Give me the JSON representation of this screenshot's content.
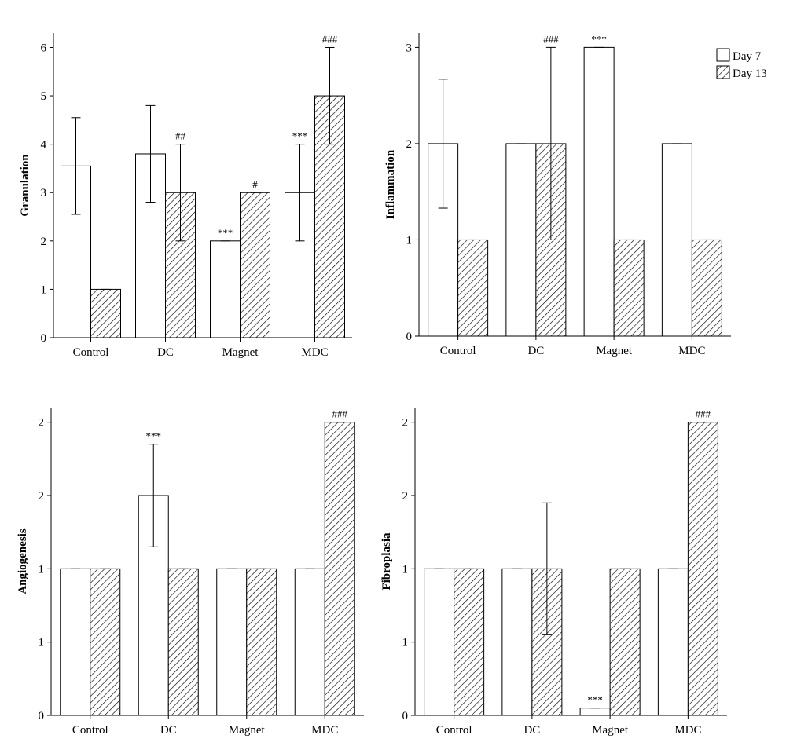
{
  "legend": [
    {
      "label": "Day 7",
      "pattern": "open"
    },
    {
      "label": "Day 13",
      "pattern": "hatch"
    }
  ],
  "colors": {
    "open_fill": "#ffffff",
    "hatch": "#000000",
    "axis": "#000000"
  },
  "chart_data": [
    {
      "type": "bar",
      "ylabel": "Granulation",
      "categories": [
        "Control",
        "DC",
        "Magnet",
        "MDC"
      ],
      "yticks": [
        "0",
        "1",
        "2",
        "3",
        "4",
        "5",
        "6"
      ],
      "ylim": [
        0,
        6.3
      ],
      "series": [
        {
          "name": "Day 7",
          "values": [
            3.55,
            3.8,
            2,
            3
          ],
          "err": [
            1,
            1,
            0,
            1
          ],
          "annotations": [
            "",
            "",
            "***",
            "***"
          ]
        },
        {
          "name": "Day 13",
          "values": [
            1,
            3,
            3,
            5
          ],
          "err": [
            0,
            1,
            0,
            1
          ],
          "annotations": [
            "",
            "##",
            "#",
            "###"
          ]
        }
      ]
    },
    {
      "type": "bar",
      "ylabel": "Inflammation",
      "categories": [
        "Control",
        "DC",
        "Magnet",
        "MDC"
      ],
      "yticks": [
        "0",
        "1",
        "2",
        "3"
      ],
      "ylim": [
        0,
        3.15
      ],
      "series": [
        {
          "name": "Day 7",
          "values": [
            2,
            2,
            3,
            2
          ],
          "err": [
            0.67,
            0,
            0,
            0
          ],
          "annotations": [
            "",
            "",
            "***",
            ""
          ]
        },
        {
          "name": "Day 13",
          "values": [
            1,
            2,
            1,
            1
          ],
          "err": [
            0,
            1,
            0,
            0
          ],
          "annotations": [
            "",
            "###",
            "",
            ""
          ]
        }
      ]
    },
    {
      "type": "bar",
      "ylabel": "Angiogenesis",
      "categories": [
        "Control",
        "DC",
        "Magnet",
        "MDC"
      ],
      "yticks": [
        "0",
        "1",
        "1",
        "2",
        "2"
      ],
      "ylim": [
        0,
        2.1
      ],
      "series": [
        {
          "name": "Day 7",
          "values": [
            1,
            1.5,
            1,
            1
          ],
          "err": [
            0,
            0.35,
            0,
            0
          ],
          "annotations": [
            "",
            "***",
            "",
            ""
          ]
        },
        {
          "name": "Day 13",
          "values": [
            1,
            1,
            1,
            2
          ],
          "err": [
            0,
            0,
            0,
            0
          ],
          "annotations": [
            "",
            "",
            "",
            "###"
          ]
        }
      ]
    },
    {
      "type": "bar",
      "ylabel": "Fibroplasia",
      "categories": [
        "Control",
        "DC",
        "Magnet",
        "MDC"
      ],
      "yticks": [
        "0",
        "1",
        "1",
        "2",
        "2"
      ],
      "ylim": [
        0,
        2.1
      ],
      "series": [
        {
          "name": "Day 7",
          "values": [
            1,
            1,
            0.05,
            1
          ],
          "err": [
            0,
            0,
            0,
            0
          ],
          "annotations": [
            "",
            "",
            "***",
            ""
          ]
        },
        {
          "name": "Day 13",
          "values": [
            1,
            1,
            1,
            2
          ],
          "err": [
            0,
            0.45,
            0,
            0
          ],
          "annotations": [
            "",
            "",
            "",
            "###"
          ]
        }
      ]
    }
  ]
}
